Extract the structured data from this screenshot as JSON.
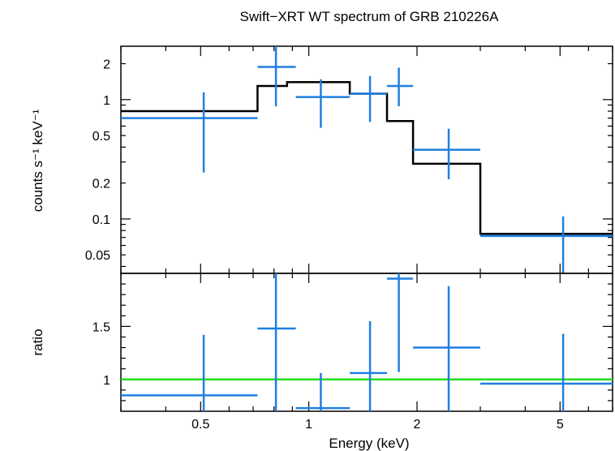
{
  "chart_data": [
    {
      "type": "step-with-errorbars",
      "title": "Swift−XRT WT spectrum of GRB 210226A",
      "ylabel": "counts s⁻¹ keV⁻¹",
      "xscale": "log",
      "yscale": "log",
      "xlim": [
        0.3,
        7.0
      ],
      "ylim": [
        0.035,
        2.8
      ],
      "ytick_labels": [
        {
          "value": 0.05,
          "label": "0.05"
        },
        {
          "value": 0.1,
          "label": "0.1"
        },
        {
          "value": 0.2,
          "label": "0.2"
        },
        {
          "value": 0.5,
          "label": "0.5"
        },
        {
          "value": 1,
          "label": "1"
        },
        {
          "value": 2,
          "label": "2"
        }
      ],
      "data_points": [
        {
          "x": 0.51,
          "xlo": 0.3,
          "xhi": 0.72,
          "y": 0.7,
          "ylo": 0.245,
          "yhi": 1.15
        },
        {
          "x": 0.81,
          "xlo": 0.72,
          "xhi": 0.92,
          "y": 1.88,
          "ylo": 0.88,
          "yhi": 3.0
        },
        {
          "x": 1.08,
          "xlo": 0.92,
          "xhi": 1.3,
          "y": 1.05,
          "ylo": 0.58,
          "yhi": 1.48
        },
        {
          "x": 1.48,
          "xlo": 1.3,
          "xhi": 1.65,
          "y": 1.12,
          "ylo": 0.65,
          "yhi": 1.58
        },
        {
          "x": 1.78,
          "xlo": 1.65,
          "xhi": 1.95,
          "y": 1.3,
          "ylo": 0.88,
          "yhi": 1.85
        },
        {
          "x": 2.45,
          "xlo": 1.95,
          "xhi": 3.0,
          "y": 0.38,
          "ylo": 0.215,
          "yhi": 0.57
        },
        {
          "x": 5.1,
          "xlo": 3.0,
          "xhi": 7.0,
          "y": 0.072,
          "ylo": 0.035,
          "yhi": 0.105
        }
      ],
      "model_steps": [
        {
          "xlo": 0.3,
          "xhi": 0.72,
          "y": 0.8
        },
        {
          "xlo": 0.72,
          "xhi": 0.87,
          "y": 1.3
        },
        {
          "xlo": 0.87,
          "xhi": 1.3,
          "y": 1.4
        },
        {
          "xlo": 1.3,
          "xhi": 1.65,
          "y": 1.12
        },
        {
          "xlo": 1.65,
          "xhi": 1.95,
          "y": 0.66
        },
        {
          "xlo": 1.95,
          "xhi": 3.0,
          "y": 0.29
        },
        {
          "xlo": 3.0,
          "xhi": 7.0,
          "y": 0.075
        }
      ],
      "colors": {
        "data": "#1f7fe0",
        "model": "#000000"
      }
    },
    {
      "type": "errorbars",
      "ylabel": "ratio",
      "xlabel": "Energy (keV)",
      "xscale": "log",
      "xlim": [
        0.3,
        7.0
      ],
      "ylim": [
        0.7,
        2.0
      ],
      "xtick_labels": [
        {
          "value": 0.5,
          "label": "0.5"
        },
        {
          "value": 1,
          "label": "1"
        },
        {
          "value": 2,
          "label": "2"
        },
        {
          "value": 5,
          "label": "5"
        }
      ],
      "ytick_labels": [
        {
          "value": 1,
          "label": "1"
        },
        {
          "value": 1.5,
          "label": "1.5"
        }
      ],
      "reference_line": 1.0,
      "data_points": [
        {
          "x": 0.51,
          "xlo": 0.3,
          "xhi": 0.72,
          "y": 0.85,
          "ylo": 0.7,
          "yhi": 1.42
        },
        {
          "x": 0.81,
          "xlo": 0.72,
          "xhi": 0.92,
          "y": 1.48,
          "ylo": 0.7,
          "yhi": 2.0
        },
        {
          "x": 1.08,
          "xlo": 0.92,
          "xhi": 1.3,
          "y": 0.73,
          "ylo": 0.7,
          "yhi": 1.06
        },
        {
          "x": 1.48,
          "xlo": 1.3,
          "xhi": 1.65,
          "y": 1.06,
          "ylo": 0.7,
          "yhi": 1.55
        },
        {
          "x": 1.78,
          "xlo": 1.65,
          "xhi": 1.95,
          "y": 1.95,
          "ylo": 1.07,
          "yhi": 2.0
        },
        {
          "x": 2.45,
          "xlo": 1.95,
          "xhi": 3.0,
          "y": 1.3,
          "ylo": 0.7,
          "yhi": 1.88
        },
        {
          "x": 5.1,
          "xlo": 3.0,
          "xhi": 7.0,
          "y": 0.96,
          "ylo": 0.7,
          "yhi": 1.43
        }
      ],
      "colors": {
        "data": "#1f7fe0",
        "reference": "#22dd22"
      }
    }
  ]
}
